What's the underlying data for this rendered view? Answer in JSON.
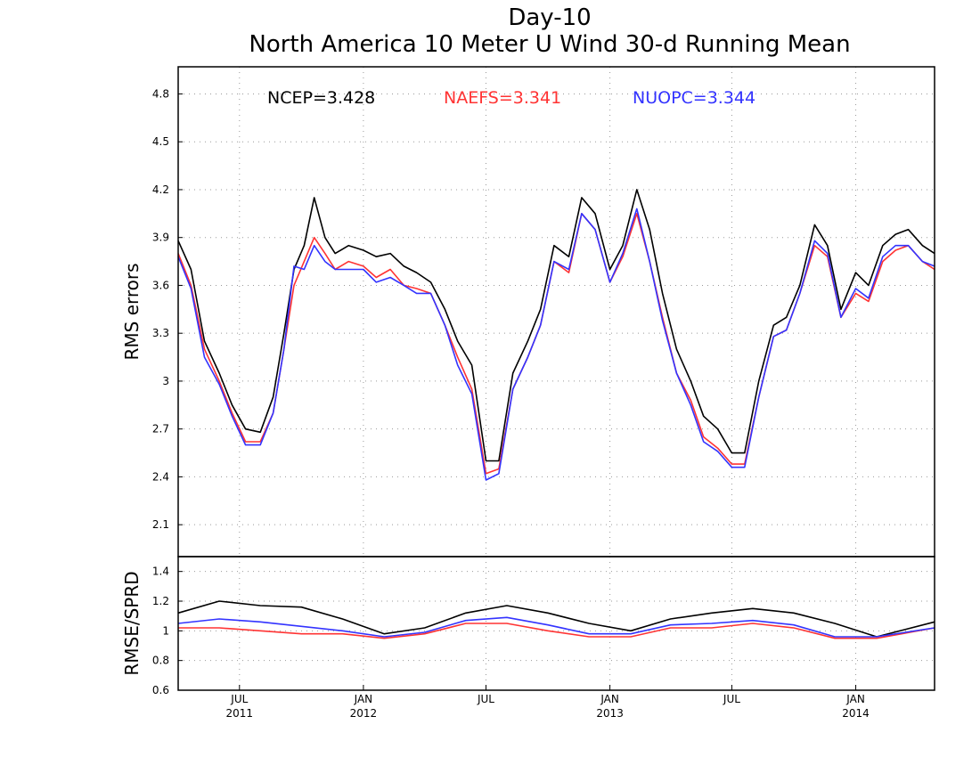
{
  "title": "Day-10",
  "subtitle": "North America 10 Meter U Wind 30-d Running Mean",
  "chart_data": [
    {
      "type": "line",
      "panel": "top",
      "ylabel": "RMS errors",
      "ylim": [
        1.9,
        4.97
      ],
      "yticks": [
        2.1,
        2.4,
        2.7,
        3,
        3.3,
        3.6,
        3.9,
        4.2,
        4.5,
        4.8
      ],
      "ytick_labels": [
        "2.1",
        "2.4",
        "2.7",
        "3",
        "3.3",
        "3.6",
        "3.9",
        "4.2",
        "4.5",
        "4.8"
      ],
      "grid": true,
      "legend": [
        {
          "label": "NCEP=3.428",
          "color": "#000000"
        },
        {
          "label": "NAEFS=3.341",
          "color": "#ff3333"
        },
        {
          "label": "NUOPC=3.344",
          "color": "#3333ff"
        }
      ],
      "x": [
        "2011-04-01",
        "2011-04-20",
        "2011-05-10",
        "2011-06-01",
        "2011-06-20",
        "2011-07-10",
        "2011-08-01",
        "2011-08-20",
        "2011-09-05",
        "2011-09-20",
        "2011-10-05",
        "2011-10-20",
        "2011-11-05",
        "2011-11-20",
        "2011-12-10",
        "2012-01-01",
        "2012-01-20",
        "2012-02-10",
        "2012-03-01",
        "2012-03-20",
        "2012-04-10",
        "2012-05-01",
        "2012-05-20",
        "2012-06-10",
        "2012-07-01",
        "2012-07-20",
        "2012-08-10",
        "2012-09-01",
        "2012-09-20",
        "2012-10-10",
        "2012-11-01",
        "2012-11-20",
        "2012-12-10",
        "2013-01-01",
        "2013-01-20",
        "2013-02-10",
        "2013-03-01",
        "2013-03-20",
        "2013-04-10",
        "2013-05-01",
        "2013-05-20",
        "2013-06-10",
        "2013-07-01",
        "2013-07-20",
        "2013-08-10",
        "2013-09-01",
        "2013-09-20",
        "2013-10-10",
        "2013-11-01",
        "2013-11-20",
        "2013-12-10",
        "2014-01-01",
        "2014-01-20",
        "2014-02-10",
        "2014-03-01",
        "2014-03-20",
        "2014-04-10",
        "2014-04-28"
      ],
      "series": [
        {
          "name": "NCEP",
          "color": "#000000",
          "values": [
            3.88,
            3.7,
            3.25,
            3.05,
            2.85,
            2.7,
            2.68,
            2.9,
            3.3,
            3.7,
            3.85,
            4.15,
            3.9,
            3.8,
            3.85,
            3.82,
            3.78,
            3.8,
            3.72,
            3.68,
            3.62,
            3.45,
            3.25,
            3.1,
            2.5,
            2.5,
            3.05,
            3.25,
            3.45,
            3.85,
            3.78,
            4.15,
            4.05,
            3.7,
            3.85,
            4.2,
            3.95,
            3.55,
            3.2,
            3.0,
            2.78,
            2.7,
            2.55,
            2.55,
            3.0,
            3.35,
            3.4,
            3.6,
            3.98,
            3.85,
            3.45,
            3.68,
            3.6,
            3.85,
            3.92,
            3.95,
            3.85,
            3.8
          ]
        },
        {
          "name": "NAEFS",
          "color": "#ff3333",
          "values": [
            3.8,
            3.6,
            3.2,
            3.0,
            2.8,
            2.62,
            2.62,
            2.8,
            3.2,
            3.6,
            3.75,
            3.9,
            3.8,
            3.7,
            3.75,
            3.72,
            3.65,
            3.7,
            3.6,
            3.58,
            3.55,
            3.35,
            3.15,
            2.95,
            2.42,
            2.45,
            2.95,
            3.15,
            3.35,
            3.75,
            3.68,
            4.05,
            3.95,
            3.62,
            3.78,
            4.05,
            3.75,
            3.4,
            3.05,
            2.88,
            2.65,
            2.58,
            2.48,
            2.48,
            2.9,
            3.28,
            3.32,
            3.55,
            3.85,
            3.78,
            3.4,
            3.55,
            3.5,
            3.75,
            3.82,
            3.85,
            3.75,
            3.7
          ]
        },
        {
          "name": "NUOPC",
          "color": "#3333ff",
          "values": [
            3.78,
            3.58,
            3.15,
            2.98,
            2.78,
            2.6,
            2.6,
            2.8,
            3.2,
            3.72,
            3.7,
            3.85,
            3.75,
            3.7,
            3.7,
            3.7,
            3.62,
            3.65,
            3.6,
            3.55,
            3.55,
            3.35,
            3.1,
            2.92,
            2.38,
            2.42,
            2.95,
            3.15,
            3.35,
            3.75,
            3.7,
            4.05,
            3.95,
            3.62,
            3.8,
            4.08,
            3.75,
            3.38,
            3.05,
            2.85,
            2.62,
            2.56,
            2.46,
            2.46,
            2.9,
            3.28,
            3.32,
            3.55,
            3.88,
            3.8,
            3.4,
            3.58,
            3.52,
            3.78,
            3.85,
            3.85,
            3.75,
            3.72
          ]
        }
      ]
    },
    {
      "type": "line",
      "panel": "bottom",
      "ylabel": "RMSE/SPRD",
      "ylim": [
        0.6,
        1.5
      ],
      "yticks": [
        0.6,
        0.8,
        1,
        1.2,
        1.4
      ],
      "ytick_labels": [
        "0.6",
        "0.8",
        "1",
        "1.2",
        "1.4"
      ],
      "grid": true,
      "x": [
        "2011-04-01",
        "2011-06-01",
        "2011-08-01",
        "2011-10-01",
        "2011-12-01",
        "2012-02-01",
        "2012-04-01",
        "2012-06-01",
        "2012-08-01",
        "2012-10-01",
        "2012-12-01",
        "2013-02-01",
        "2013-04-01",
        "2013-06-01",
        "2013-08-01",
        "2013-10-01",
        "2013-12-01",
        "2014-02-01",
        "2014-04-28"
      ],
      "series": [
        {
          "name": "NCEP",
          "color": "#000000",
          "values": [
            1.12,
            1.2,
            1.17,
            1.16,
            1.08,
            0.98,
            1.02,
            1.12,
            1.17,
            1.12,
            1.05,
            1.0,
            1.08,
            1.12,
            1.15,
            1.12,
            1.05,
            0.96,
            1.06
          ]
        },
        {
          "name": "NAEFS",
          "color": "#ff3333",
          "values": [
            1.02,
            1.02,
            1.0,
            0.98,
            0.98,
            0.95,
            0.98,
            1.05,
            1.05,
            1.0,
            0.96,
            0.96,
            1.02,
            1.02,
            1.05,
            1.02,
            0.95,
            0.95,
            1.02
          ]
        },
        {
          "name": "NUOPC",
          "color": "#3333ff",
          "values": [
            1.05,
            1.08,
            1.06,
            1.03,
            1.0,
            0.96,
            0.99,
            1.07,
            1.09,
            1.04,
            0.98,
            0.98,
            1.04,
            1.05,
            1.07,
            1.04,
            0.96,
            0.96,
            1.02
          ]
        }
      ]
    }
  ],
  "x_axis": {
    "xlim": [
      "2011-04-01",
      "2014-04-28"
    ],
    "ticks": [
      {
        "date": "2011-07-01",
        "month": "JUL",
        "year": "2011"
      },
      {
        "date": "2012-01-01",
        "month": "JAN",
        "year": "2012"
      },
      {
        "date": "2012-07-01",
        "month": "JUL",
        "year": ""
      },
      {
        "date": "2013-01-01",
        "month": "JAN",
        "year": "2013"
      },
      {
        "date": "2013-07-01",
        "month": "JUL",
        "year": ""
      },
      {
        "date": "2014-01-01",
        "month": "JAN",
        "year": "2014"
      }
    ]
  }
}
